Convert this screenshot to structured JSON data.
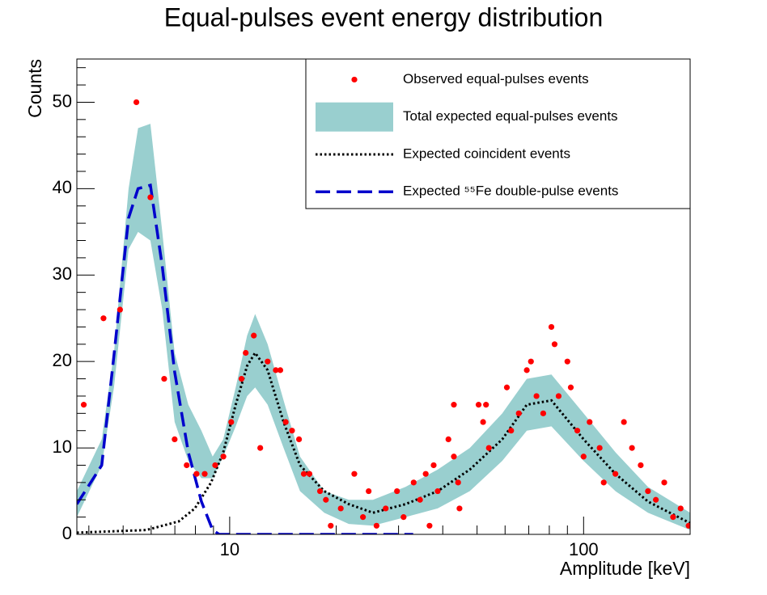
{
  "chart_data": {
    "type": "scatter",
    "title": "Equal-pulses event energy distribution",
    "x_label": "Amplitude [keV]",
    "y_label": "Counts",
    "xlog": true,
    "xlim": [
      3.7,
      200
    ],
    "ylim": [
      0,
      55
    ],
    "xticks": [
      10,
      100
    ],
    "xminor_ticks": [
      4,
      5,
      6,
      7,
      8,
      9,
      20,
      30,
      40,
      50,
      60,
      70,
      80,
      90,
      200
    ],
    "yticks": [
      0,
      10,
      20,
      30,
      40,
      50
    ],
    "yminor_ticks": [
      2,
      4,
      6,
      8,
      12,
      14,
      16,
      18,
      22,
      24,
      26,
      28,
      32,
      34,
      36,
      38,
      42,
      44,
      46,
      48,
      52,
      54
    ],
    "legend": "upper right",
    "series": [
      {
        "name": "Observed equal-pulses events",
        "type": "points",
        "color": "#ff0000",
        "x": [
          3.87,
          4.4,
          4.9,
          5.45,
          5.97,
          6.53,
          6.99,
          7.56,
          8.06,
          8.5,
          9.1,
          9.6,
          10.1,
          10.8,
          11.1,
          11.7,
          12.2,
          12.8,
          13.5,
          13.9,
          14.4,
          15.0,
          15.7,
          16.2,
          16.8,
          18.0,
          18.7,
          19.3,
          20.6,
          22.5,
          23.8,
          24.7,
          26.0,
          27.6,
          29.7,
          31.0,
          33.1,
          34.5,
          35.8,
          36.7,
          37.7,
          38.7,
          41.5,
          43.0,
          43.0,
          44.2,
          44.6,
          50.5,
          52.0,
          53.0,
          54.0,
          60.7,
          62.4,
          65.6,
          69.1,
          71.0,
          73.6,
          76.9,
          81.1,
          82.8,
          85.0,
          90.0,
          92.0,
          96.0,
          100.0,
          104.0,
          111.0,
          114.0,
          123.0,
          130.0,
          137.0,
          145.0,
          152.0,
          160.0,
          169.0,
          179.0,
          188.0,
          198.0
        ],
        "values": [
          15,
          25,
          26,
          50,
          39,
          18,
          11,
          8,
          7,
          7,
          8,
          9,
          13,
          18,
          21,
          23,
          10,
          20,
          19,
          19,
          13,
          12,
          11,
          7,
          7,
          5,
          4,
          1,
          3,
          7,
          2,
          5,
          1,
          3,
          5,
          2,
          6,
          4,
          7,
          1,
          8,
          5,
          11,
          9,
          15,
          6,
          3,
          15,
          13,
          15,
          10,
          17,
          12,
          14,
          19,
          20,
          16,
          14,
          24,
          22,
          16,
          20,
          17,
          12,
          9,
          13,
          10,
          6,
          7,
          13,
          10,
          8,
          5,
          4,
          6,
          2,
          3,
          1
        ]
      },
      {
        "name": "Total expected equal-pulses events",
        "type": "band",
        "color": "#99cfcf",
        "x": [
          3.7,
          4.35,
          4.71,
          5.18,
          5.51,
          5.97,
          6.45,
          6.99,
          7.64,
          8.32,
          8.95,
          9.59,
          10.4,
          11.2,
          11.8,
          12.8,
          14.2,
          15.8,
          18.5,
          21.7,
          25.4,
          31.4,
          38.7,
          47.7,
          58.9,
          69.1,
          81.1,
          100,
          123,
          152,
          200
        ],
        "lower": [
          2,
          8,
          17,
          33,
          35,
          34,
          26,
          13,
          8.5,
          6.5,
          6.5,
          9,
          12.5,
          16,
          17,
          15,
          10,
          5,
          2.5,
          1.2,
          1,
          2,
          3,
          5,
          8.5,
          12,
          12.5,
          8.5,
          5,
          2.5,
          0.5
        ],
        "upper": [
          5,
          11,
          21,
          40,
          47,
          47.5,
          35,
          21,
          15,
          12,
          9,
          11,
          17,
          23,
          25.5,
          22,
          15.5,
          9,
          5,
          4,
          4,
          5.5,
          7.5,
          10,
          14,
          18,
          18.5,
          14,
          9.5,
          5.5,
          2.5
        ]
      },
      {
        "name": "Expected coincident events",
        "type": "line",
        "style": "dotted",
        "color": "#000000",
        "x": [
          3.7,
          5.81,
          7.18,
          7.97,
          8.86,
          9.59,
          10.4,
          11.2,
          11.8,
          12.8,
          14.2,
          15.8,
          18.5,
          21.7,
          25.4,
          31.4,
          38.7,
          47.7,
          58.9,
          69.1,
          81.1,
          100,
          123,
          152,
          200
        ],
        "values": [
          0.2,
          0.5,
          1.5,
          3,
          6,
          9.5,
          15,
          19.5,
          21,
          19,
          13,
          8,
          5,
          3.5,
          2.5,
          3.5,
          5,
          7.5,
          11,
          15,
          15.5,
          11,
          7,
          3.8,
          1.3
        ]
      },
      {
        "name": "Expected ⁵⁵Fe double-pulse events",
        "type": "line",
        "style": "dashed",
        "color": "#0000cc",
        "x": [
          3.7,
          4.35,
          4.71,
          5.18,
          5.51,
          5.97,
          6.45,
          6.99,
          7.64,
          8.32,
          8.95,
          9.34,
          33
        ],
        "values": [
          3.5,
          8,
          20.7,
          36.6,
          40,
          40.4,
          31,
          18.8,
          9.5,
          3.8,
          0.5,
          0,
          0
        ]
      }
    ]
  }
}
